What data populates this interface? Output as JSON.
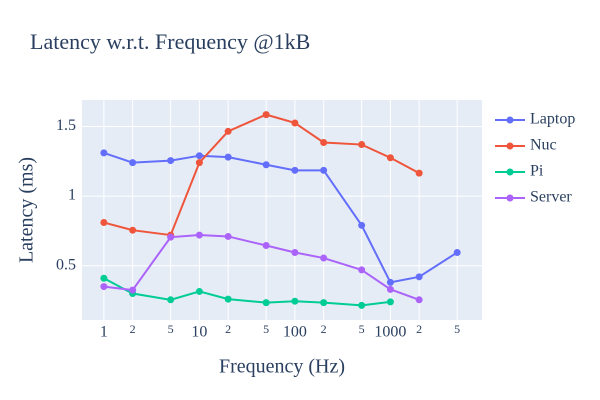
{
  "chart_data": {
    "type": "line",
    "title": "Latency w.r.t. Frequency @1kB",
    "x_label": "Frequency (Hz)",
    "y_label": "Latency (ms)",
    "x": [
      1,
      2,
      5,
      10,
      20,
      50,
      100,
      200,
      500,
      1000,
      2000,
      5000
    ],
    "series": [
      {
        "name": "Laptop",
        "color": "#636efa",
        "values": [
          1.31,
          1.24,
          1.255,
          1.29,
          1.28,
          1.225,
          1.185,
          1.185,
          0.79,
          0.38,
          0.42,
          0.595
        ]
      },
      {
        "name": "Nuc",
        "color": "#ef553b",
        "values": [
          0.81,
          0.755,
          0.72,
          1.24,
          1.465,
          1.585,
          1.525,
          1.385,
          1.37,
          1.275,
          1.165,
          null
        ]
      },
      {
        "name": "Pi",
        "color": "#00cc96",
        "values": [
          0.41,
          0.3,
          0.255,
          0.315,
          0.26,
          0.235,
          0.245,
          0.235,
          0.215,
          0.24,
          null,
          null
        ]
      },
      {
        "name": "Server",
        "color": "#ab63fa",
        "values": [
          0.35,
          0.325,
          0.705,
          0.72,
          0.71,
          0.645,
          0.595,
          0.555,
          0.47,
          0.33,
          0.255,
          null
        ]
      }
    ],
    "xscale": "log",
    "xlim": [
      0.59,
      9100
    ],
    "ylim": [
      0.11,
      1.69
    ],
    "xticks": [
      1,
      2,
      5,
      10,
      {
        "value": 20,
        "label": "2"
      },
      {
        "value": 50,
        "label": "5"
      },
      100,
      {
        "value": 200,
        "label": "2"
      },
      {
        "value": 500,
        "label": "5"
      },
      1000,
      {
        "value": 2000,
        "label": "2"
      },
      {
        "value": 5000,
        "label": "5"
      }
    ],
    "yticks": [
      0.5,
      1,
      1.5
    ],
    "grid": true,
    "legend": "right"
  }
}
